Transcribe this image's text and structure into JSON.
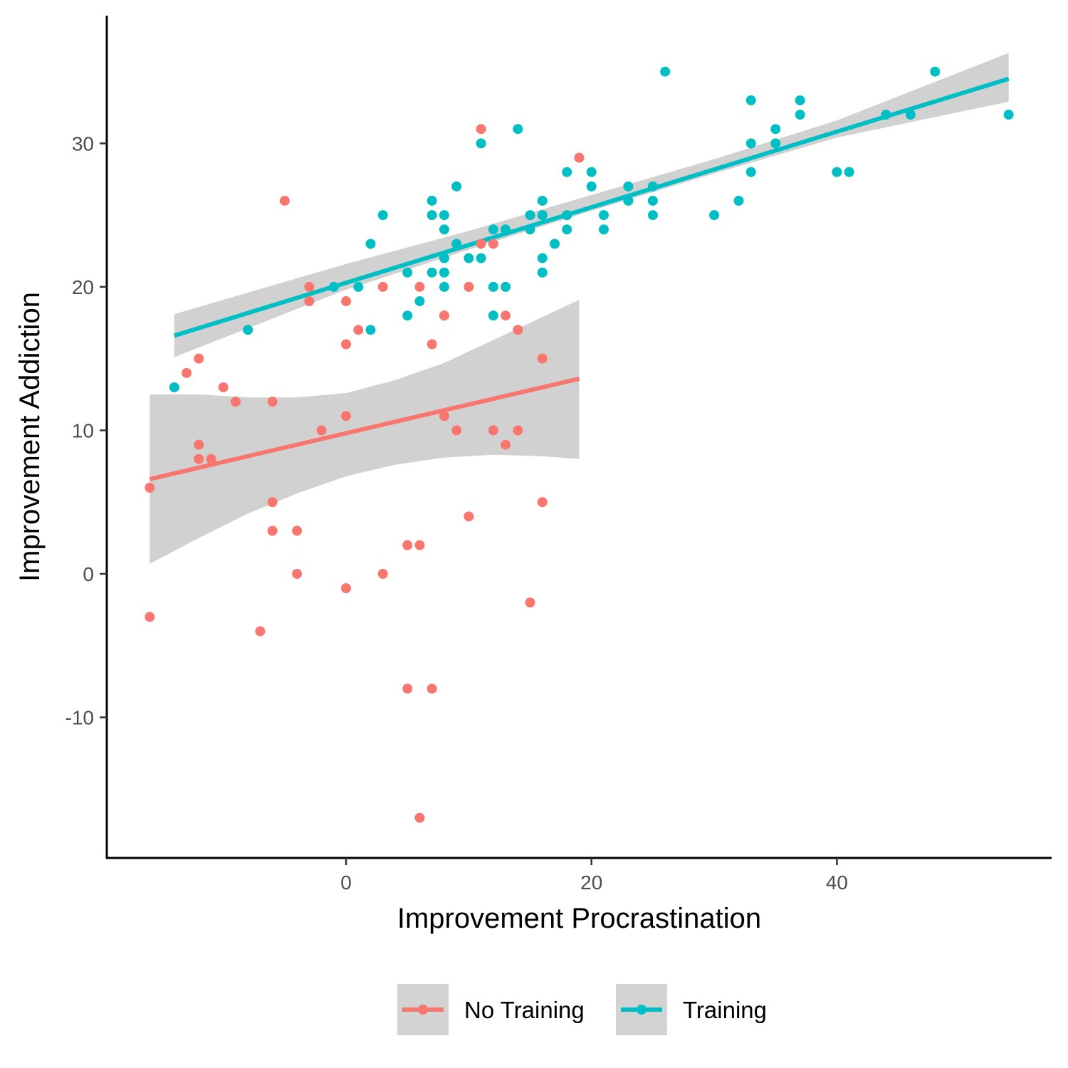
{
  "chart_data": {
    "type": "scatter",
    "title": "",
    "xlabel": "Improvement Procrastination",
    "ylabel": "Improvement Addiction",
    "xlim": [
      -19.5,
      57.5
    ],
    "ylim": [
      -19.8,
      38.9
    ],
    "x_ticks": [
      0,
      20,
      40
    ],
    "y_ticks": [
      -10,
      0,
      10,
      20,
      30
    ],
    "grid": false,
    "legend_position": "bottom",
    "series": [
      {
        "name": "No Training",
        "color": "#F8766D",
        "points": [
          [
            -16,
            6
          ],
          [
            -16,
            -3
          ],
          [
            -13,
            14
          ],
          [
            -12,
            15
          ],
          [
            -12,
            9
          ],
          [
            -12,
            8
          ],
          [
            -11,
            8
          ],
          [
            -10,
            13
          ],
          [
            -9,
            12
          ],
          [
            -7,
            -4
          ],
          [
            -6,
            12
          ],
          [
            -6,
            5
          ],
          [
            -6,
            3
          ],
          [
            -5,
            26
          ],
          [
            -4,
            3
          ],
          [
            -4,
            0
          ],
          [
            -3,
            20
          ],
          [
            -3,
            19
          ],
          [
            -2,
            10
          ],
          [
            0,
            19
          ],
          [
            0,
            16
          ],
          [
            0,
            11
          ],
          [
            0,
            -1
          ],
          [
            1,
            17
          ],
          [
            3,
            20
          ],
          [
            3,
            0
          ],
          [
            5,
            2
          ],
          [
            5,
            -8
          ],
          [
            6,
            20
          ],
          [
            6,
            2
          ],
          [
            6,
            -17
          ],
          [
            7,
            16
          ],
          [
            7,
            -8
          ],
          [
            8,
            22
          ],
          [
            8,
            18
          ],
          [
            8,
            11
          ],
          [
            9,
            10
          ],
          [
            10,
            20
          ],
          [
            10,
            4
          ],
          [
            11,
            31
          ],
          [
            11,
            23
          ],
          [
            12,
            23
          ],
          [
            12,
            10
          ],
          [
            13,
            18
          ],
          [
            13,
            9
          ],
          [
            14,
            17
          ],
          [
            14,
            10
          ],
          [
            15,
            -2
          ],
          [
            16,
            15
          ],
          [
            16,
            5
          ],
          [
            19,
            29
          ]
        ],
        "fit": {
          "x": [
            -16,
            19
          ],
          "y": [
            6.6,
            13.6
          ]
        },
        "ci": {
          "x": [
            -16,
            -12,
            -8,
            -4,
            0,
            4,
            8,
            12,
            16,
            19
          ],
          "lower": [
            0.7,
            2.5,
            4.2,
            5.6,
            6.8,
            7.6,
            8.1,
            8.3,
            8.2,
            8.0
          ],
          "upper": [
            12.5,
            12.5,
            12.3,
            12.3,
            12.6,
            13.5,
            14.7,
            16.3,
            17.9,
            19.1
          ]
        }
      },
      {
        "name": "Training",
        "color": "#00BFC4",
        "points": [
          [
            -14,
            13
          ],
          [
            -8,
            17
          ],
          [
            -1,
            20
          ],
          [
            1,
            20
          ],
          [
            2,
            23
          ],
          [
            2,
            17
          ],
          [
            3,
            25
          ],
          [
            5,
            21
          ],
          [
            5,
            18
          ],
          [
            6,
            19
          ],
          [
            7,
            26
          ],
          [
            7,
            25
          ],
          [
            7,
            21
          ],
          [
            8,
            25
          ],
          [
            8,
            24
          ],
          [
            8,
            22
          ],
          [
            8,
            21
          ],
          [
            8,
            20
          ],
          [
            9,
            27
          ],
          [
            9,
            23
          ],
          [
            10,
            22
          ],
          [
            11,
            30
          ],
          [
            11,
            22
          ],
          [
            12,
            24
          ],
          [
            12,
            20
          ],
          [
            12,
            18
          ],
          [
            13,
            24
          ],
          [
            13,
            20
          ],
          [
            14,
            31
          ],
          [
            15,
            25
          ],
          [
            15,
            24
          ],
          [
            16,
            26
          ],
          [
            16,
            25
          ],
          [
            16,
            22
          ],
          [
            16,
            21
          ],
          [
            17,
            23
          ],
          [
            18,
            28
          ],
          [
            18,
            25
          ],
          [
            18,
            24
          ],
          [
            20,
            28
          ],
          [
            20,
            27
          ],
          [
            21,
            25
          ],
          [
            21,
            24
          ],
          [
            23,
            27
          ],
          [
            23,
            26
          ],
          [
            25,
            27
          ],
          [
            25,
            26
          ],
          [
            25,
            25
          ],
          [
            26,
            35
          ],
          [
            30,
            25
          ],
          [
            32,
            26
          ],
          [
            33,
            33
          ],
          [
            33,
            30
          ],
          [
            33,
            28
          ],
          [
            35,
            31
          ],
          [
            35,
            30
          ],
          [
            37,
            33
          ],
          [
            37,
            32
          ],
          [
            40,
            28
          ],
          [
            41,
            28
          ],
          [
            44,
            32
          ],
          [
            46,
            32
          ],
          [
            48,
            35
          ],
          [
            54,
            32
          ]
        ],
        "fit": {
          "x": [
            -14,
            54
          ],
          "y": [
            16.6,
            34.5
          ]
        },
        "ci": {
          "x": [
            -14,
            0,
            10,
            20,
            30,
            40,
            54
          ],
          "lower": [
            15.1,
            19.8,
            22.6,
            25.3,
            27.9,
            30.4,
            32.9
          ],
          "upper": [
            18.1,
            21.6,
            23.9,
            26.4,
            28.9,
            31.6,
            36.3
          ]
        }
      }
    ]
  }
}
